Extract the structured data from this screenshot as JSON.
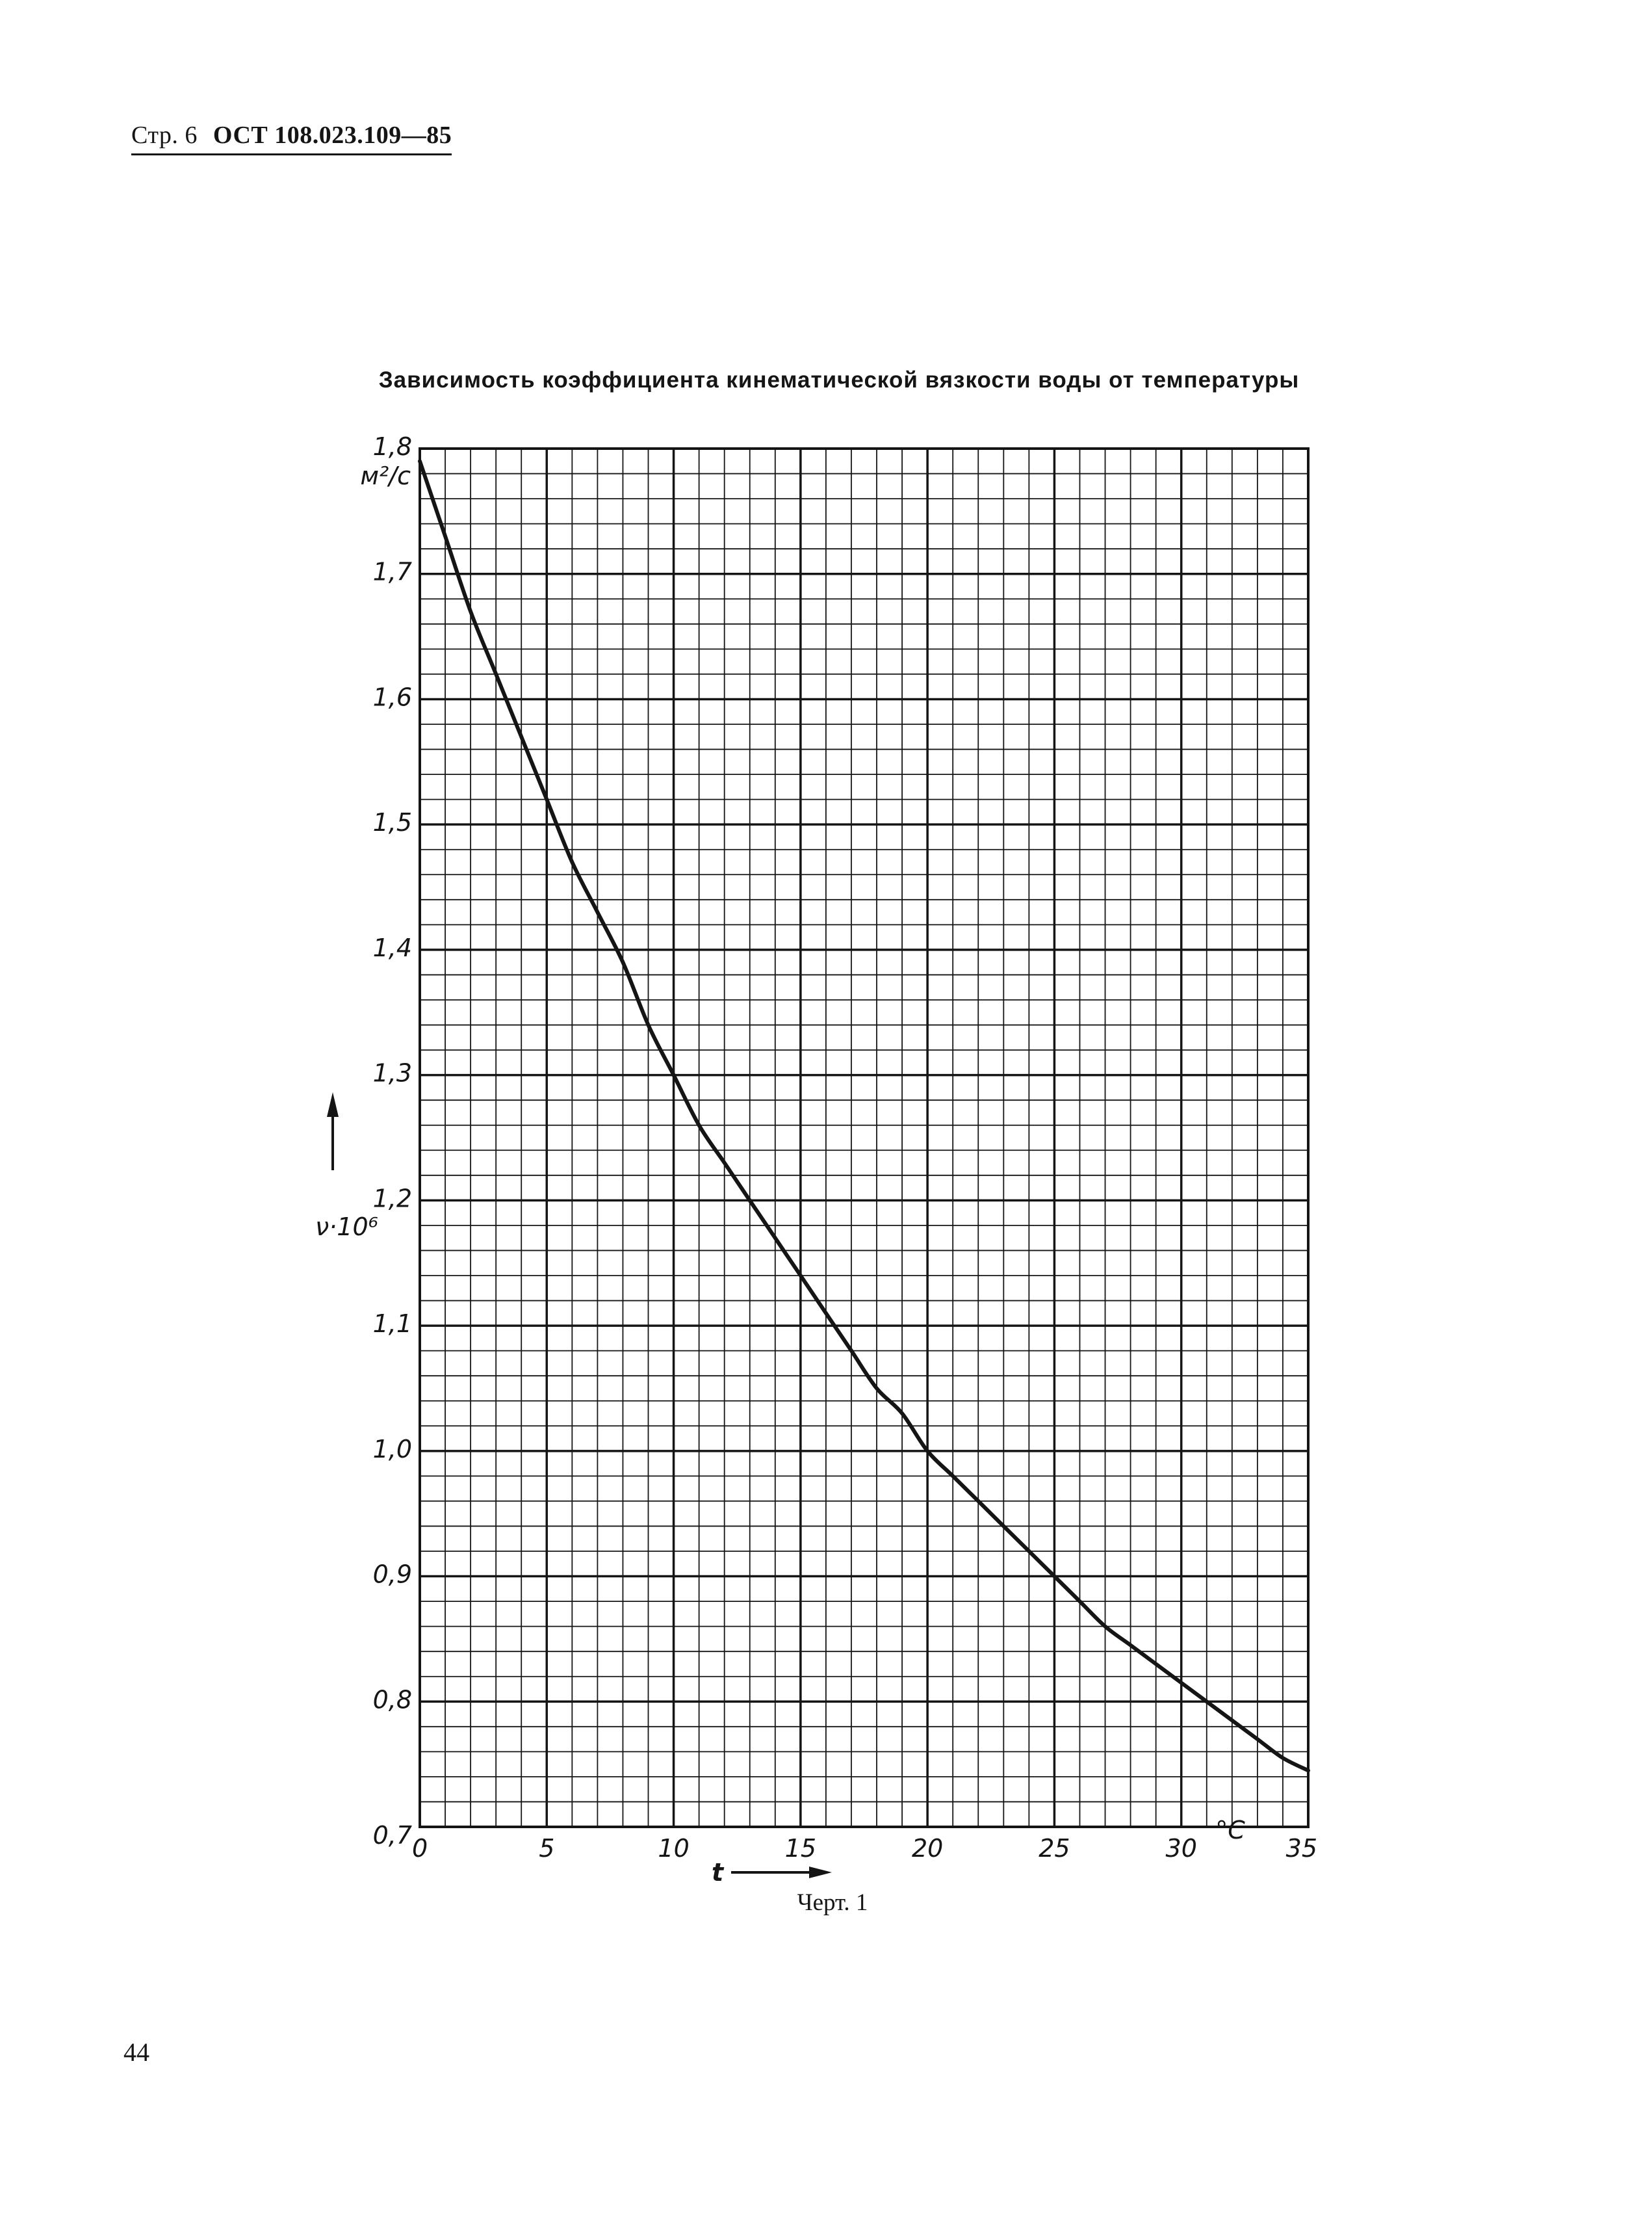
{
  "header": {
    "page_ref": "Стр. 6",
    "standard": "ОСТ 108.023.109—85"
  },
  "page_number": "44",
  "figure_caption": "Черт. 1",
  "chart_data": {
    "type": "line",
    "title": "Зависимость коэффициента кинематической вязкости воды от температуры",
    "xlabel": "t",
    "x_unit": "°C",
    "ylabel": "ν·10⁶",
    "y_unit": "м²/с",
    "xlim": [
      0,
      35
    ],
    "ylim": [
      0.7,
      1.8
    ],
    "x_ticks": [
      0,
      5,
      10,
      15,
      20,
      25,
      30,
      35
    ],
    "x_tick_labels": [
      "0",
      "5",
      "10",
      "15",
      "20",
      "25",
      "30",
      "35"
    ],
    "y_ticks": [
      0.7,
      0.8,
      0.9,
      1.0,
      1.1,
      1.2,
      1.3,
      1.4,
      1.5,
      1.6,
      1.7,
      1.8
    ],
    "y_tick_labels": [
      "0,7",
      "0,8",
      "0,9",
      "1,0",
      "1,1",
      "1,2",
      "1,3",
      "1,4",
      "1,5",
      "1,6",
      "1,7",
      "1,8"
    ],
    "grid": true,
    "x_minor_step": 1,
    "y_minor_step": 0.02,
    "series": [
      {
        "x": [
          0,
          1,
          2,
          3,
          4,
          5,
          6,
          7,
          8,
          9,
          10,
          11,
          12,
          13,
          14,
          15,
          16,
          17,
          18,
          19,
          20,
          21,
          22,
          23,
          24,
          25,
          26,
          27,
          28,
          29,
          30,
          31,
          32,
          33,
          34,
          35
        ],
        "values": [
          1.79,
          1.73,
          1.67,
          1.62,
          1.57,
          1.52,
          1.47,
          1.43,
          1.39,
          1.34,
          1.3,
          1.26,
          1.23,
          1.2,
          1.17,
          1.14,
          1.11,
          1.08,
          1.05,
          1.03,
          1.0,
          0.98,
          0.96,
          0.94,
          0.92,
          0.9,
          0.88,
          0.86,
          0.845,
          0.83,
          0.815,
          0.8,
          0.785,
          0.77,
          0.755,
          0.745
        ]
      }
    ]
  }
}
